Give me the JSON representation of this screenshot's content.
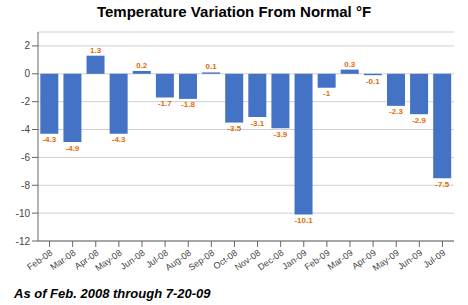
{
  "chart_data": {
    "type": "bar",
    "title": "Temperature Variation From Normal °F",
    "categories": [
      "Feb-08",
      "Mar-08",
      "Apr-08",
      "May-08",
      "Jun-08",
      "Jul-08",
      "Aug-08",
      "Sep-08",
      "Oct-08",
      "Nov-08",
      "Dec-08",
      "Jan-09",
      "Feb-09",
      "Mar-09",
      "Apr-09",
      "May-09",
      "Jun-09",
      "Jul-09"
    ],
    "values": [
      -4.3,
      -4.9,
      1.3,
      -4.3,
      0.2,
      -1.7,
      -1.8,
      0.1,
      -3.5,
      -3.1,
      -3.9,
      -10.1,
      -1.0,
      0.3,
      -0.1,
      -2.3,
      -2.9,
      -7.5
    ],
    "color": "#4472C4",
    "ylim": [
      -12,
      3
    ],
    "yticks": [
      -12,
      -10,
      -8,
      -6,
      -4,
      -2,
      0,
      2
    ],
    "grid": true,
    "data_labels": true,
    "annotations": [
      "As of Feb. 2008 through 7-20-09"
    ]
  }
}
